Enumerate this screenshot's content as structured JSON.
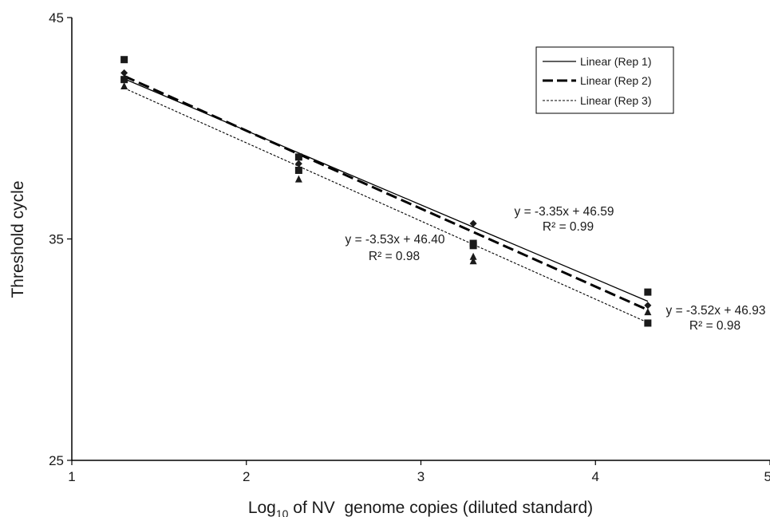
{
  "chart_data": {
    "type": "scatter",
    "title": "",
    "xlabel_main": "Log",
    "xlabel_sub": "10",
    "xlabel_rest": " of NV  genome copies (diluted standard)",
    "ylabel": "Threshold cycle",
    "xlim": [
      1,
      5
    ],
    "ylim": [
      25,
      45
    ],
    "xticks": [
      1,
      2,
      3,
      4,
      5
    ],
    "yticks": [
      25,
      35,
      45
    ],
    "grid": false,
    "legend_position": "top-right",
    "series": [
      {
        "name": "Linear (Rep 1)",
        "marker": "diamond",
        "line_style": "solid",
        "points": [
          [
            1.3,
            42.5
          ],
          [
            2.3,
            38.4
          ],
          [
            3.3,
            35.7
          ],
          [
            4.3,
            32.0
          ]
        ],
        "fit": {
          "slope": -3.35,
          "intercept": 46.59,
          "x_range": [
            1.3,
            4.3
          ]
        },
        "equation": "y = -3.35x + 46.59",
        "r2": "R² = 0.99"
      },
      {
        "name": "Linear (Rep 2)",
        "marker": "square",
        "line_style": "long-dash",
        "points": [
          [
            1.3,
            43.1
          ],
          [
            1.3,
            42.2
          ],
          [
            2.3,
            38.7
          ],
          [
            2.3,
            38.1
          ],
          [
            3.3,
            34.8
          ],
          [
            3.3,
            34.7
          ],
          [
            4.3,
            32.6
          ],
          [
            4.3,
            31.2
          ]
        ],
        "fit": {
          "slope": -3.52,
          "intercept": 46.93,
          "x_range": [
            1.3,
            4.3
          ]
        },
        "equation": "y = -3.52x + 46.93",
        "r2": "R² = 0.98"
      },
      {
        "name": "Linear (Rep 3)",
        "marker": "triangle",
        "line_style": "short-dash",
        "points": [
          [
            1.3,
            41.9
          ],
          [
            2.3,
            37.7
          ],
          [
            3.3,
            34.0
          ],
          [
            3.3,
            34.2
          ],
          [
            4.3,
            31.7
          ]
        ],
        "fit": {
          "slope": -3.53,
          "intercept": 46.4,
          "x_range": [
            1.3,
            4.3
          ]
        },
        "equation": "y = -3.53x + 46.40",
        "r2": "R² = 0.98"
      }
    ]
  }
}
